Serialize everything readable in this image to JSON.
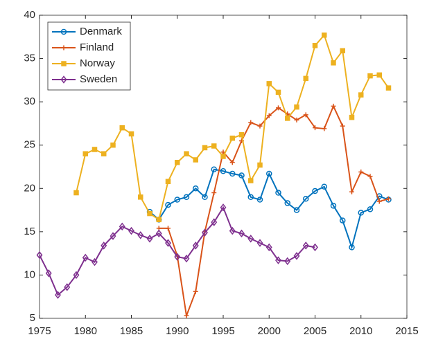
{
  "chart_data": {
    "type": "line",
    "x": [
      1975,
      1976,
      1977,
      1978,
      1979,
      1980,
      1981,
      1982,
      1983,
      1984,
      1985,
      1986,
      1987,
      1988,
      1989,
      1990,
      1991,
      1992,
      1993,
      1994,
      1995,
      1996,
      1997,
      1998,
      1999,
      2000,
      2001,
      2002,
      2003,
      2004,
      2005,
      2006,
      2007,
      2008,
      2009,
      2010,
      2011,
      2012,
      2013
    ],
    "series": [
      {
        "name": "Denmark",
        "color": "#0072BD",
        "marker": "circle",
        "values": [
          null,
          null,
          null,
          null,
          null,
          null,
          null,
          null,
          null,
          null,
          null,
          null,
          17.3,
          16.4,
          18.1,
          18.7,
          19.0,
          20.0,
          19.0,
          22.2,
          22.0,
          21.7,
          21.5,
          19.0,
          18.7,
          21.7,
          19.5,
          18.3,
          17.5,
          18.8,
          19.7,
          20.2,
          18.0,
          16.3,
          13.2,
          17.2,
          17.6,
          19.1,
          18.7
        ]
      },
      {
        "name": "Finland",
        "color": "#D95319",
        "marker": "plus",
        "values": [
          null,
          null,
          null,
          null,
          null,
          null,
          null,
          null,
          null,
          null,
          null,
          null,
          null,
          15.4,
          15.4,
          12.2,
          5.3,
          8.1,
          15.0,
          19.5,
          24.2,
          23.0,
          25.5,
          27.6,
          27.2,
          28.4,
          29.3,
          28.6,
          27.9,
          28.5,
          27.0,
          26.9,
          29.5,
          27.2,
          19.6,
          21.9,
          21.4,
          18.5,
          18.8
        ]
      },
      {
        "name": "Norway",
        "color": "#EDB120",
        "marker": "square",
        "values": [
          null,
          null,
          null,
          null,
          19.5,
          24.0,
          24.5,
          24.0,
          25.0,
          27.0,
          26.3,
          19.0,
          17.1,
          16.4,
          20.8,
          23.0,
          24.0,
          23.3,
          24.7,
          24.9,
          23.7,
          25.8,
          26.2,
          20.9,
          22.7,
          32.1,
          31.1,
          28.1,
          29.4,
          32.7,
          36.5,
          37.7,
          34.5,
          35.9,
          28.2,
          30.8,
          33.0,
          33.1,
          31.6
        ]
      },
      {
        "name": "Sweden",
        "color": "#7E2F8E",
        "marker": "diamond",
        "values": [
          12.3,
          10.2,
          7.7,
          8.6,
          10.0,
          12.0,
          11.5,
          13.4,
          14.5,
          15.6,
          15.1,
          14.6,
          14.2,
          14.8,
          13.7,
          12.1,
          11.9,
          13.4,
          14.9,
          16.1,
          17.8,
          15.1,
          14.8,
          14.2,
          13.7,
          13.2,
          11.7,
          11.6,
          12.2,
          13.4,
          13.2,
          null,
          null,
          null,
          null,
          null,
          null,
          null,
          null
        ]
      }
    ],
    "xlim": [
      1975,
      2015
    ],
    "xticks": [
      1975,
      1980,
      1985,
      1990,
      1995,
      2000,
      2005,
      2010,
      2015
    ],
    "ylim": [
      5,
      40
    ],
    "yticks": [
      5,
      10,
      15,
      20,
      25,
      30,
      35,
      40
    ],
    "legend": "upper left"
  }
}
